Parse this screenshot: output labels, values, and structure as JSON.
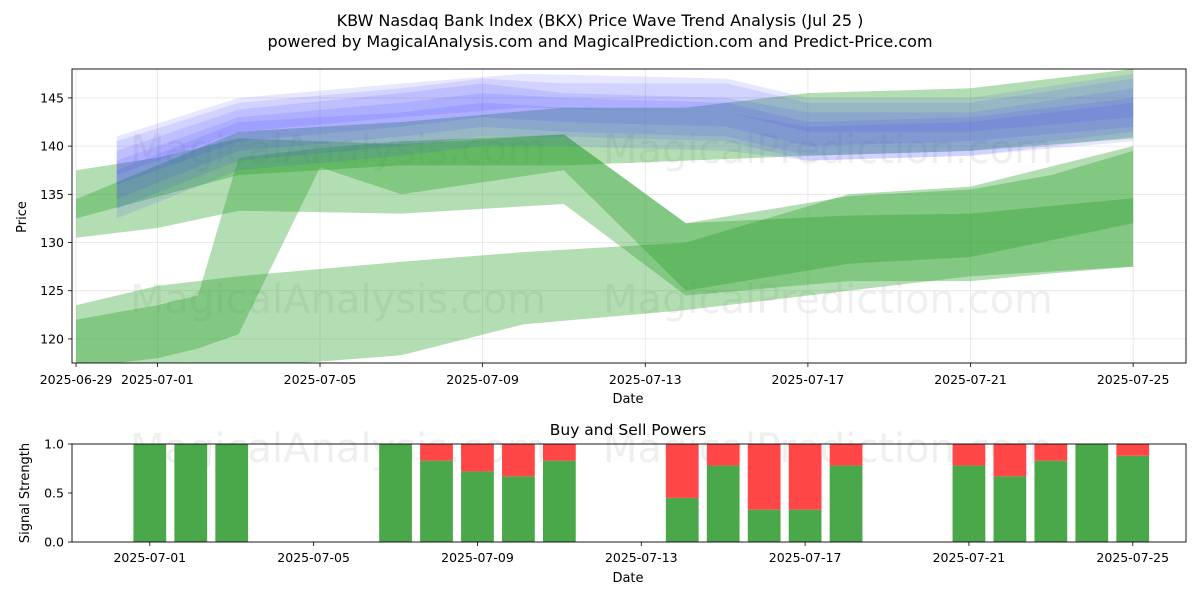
{
  "header": {
    "title": "KBW Nasdaq Bank Index (BKX) Price Wave Trend Analysis (Jul 25 )",
    "subtitle": "powered by MagicalAnalysis.com and MagicalPrediction.com and Predict-Price.com"
  },
  "watermarks": [
    "MagicalAnalysis.com",
    "MagicalPrediction.com"
  ],
  "colors": {
    "green_band": "#2ca02c",
    "blue_band": "#3b3bff",
    "buy": "#4aa84a",
    "sell": "#ff4747",
    "grid": "#e4e4e4"
  },
  "chart_data": [
    {
      "type": "area",
      "title": "",
      "xlabel": "Date",
      "ylabel": "Price",
      "x_range": [
        "2025-06-29",
        "2025-07-26"
      ],
      "ylim": [
        117.5,
        148.0
      ],
      "grid": true,
      "x_ticks": [
        "2025-06-29",
        "2025-07-01",
        "2025-07-05",
        "2025-07-09",
        "2025-07-13",
        "2025-07-17",
        "2025-07-21",
        "2025-07-25"
      ],
      "y_ticks": [
        120,
        125,
        130,
        135,
        140,
        145
      ],
      "green_bands": [
        {
          "x": [
            "2025-06-29",
            "2025-07-01",
            "2025-07-03",
            "2025-07-07",
            "2025-07-11",
            "2025-07-14",
            "2025-07-18",
            "2025-07-21",
            "2025-07-23",
            "2025-07-25"
          ],
          "upper": [
            137.5,
            138.8,
            140.8,
            140.2,
            141.2,
            132.0,
            134.8,
            135.5,
            137.0,
            139.5
          ],
          "lower": [
            130.5,
            131.5,
            133.3,
            133.0,
            134.0,
            124.5,
            126.0,
            126.0,
            126.8,
            127.5
          ]
        },
        {
          "x": [
            "2025-06-29",
            "2025-07-01",
            "2025-07-02",
            "2025-07-03",
            "2025-07-05",
            "2025-07-07",
            "2025-07-11",
            "2025-07-14",
            "2025-07-18",
            "2025-07-21",
            "2025-07-25"
          ],
          "upper": [
            122.0,
            123.5,
            124.5,
            138.8,
            139.8,
            140.5,
            141.2,
            132.0,
            132.8,
            133.0,
            134.6
          ],
          "lower": [
            117.0,
            118.0,
            119.0,
            120.5,
            137.8,
            135.0,
            137.5,
            125.0,
            127.8,
            128.5,
            132.0
          ]
        },
        {
          "x": [
            "2025-06-29",
            "2025-07-01",
            "2025-07-03",
            "2025-07-07",
            "2025-07-10",
            "2025-07-14",
            "2025-07-18",
            "2025-07-21",
            "2025-07-25"
          ],
          "upper": [
            123.5,
            125.5,
            126.5,
            128.0,
            129.0,
            130.0,
            135.0,
            135.8,
            140.0
          ],
          "lower": [
            113.0,
            116.0,
            117.0,
            118.3,
            121.5,
            123.0,
            125.0,
            126.5,
            127.5
          ]
        },
        {
          "x": [
            "2025-06-29",
            "2025-07-03",
            "2025-07-07",
            "2025-07-11",
            "2025-07-14",
            "2025-07-17",
            "2025-07-21",
            "2025-07-25"
          ],
          "upper": [
            134.5,
            141.5,
            142.5,
            144.0,
            144.0,
            145.5,
            146.0,
            148.0
          ],
          "lower": [
            132.5,
            137.0,
            138.0,
            138.0,
            138.5,
            139.0,
            139.5,
            140.8
          ]
        }
      ],
      "blue_bands": [
        {
          "x": [
            "2025-06-30",
            "2025-07-03",
            "2025-07-07",
            "2025-07-09",
            "2025-07-11",
            "2025-07-15",
            "2025-07-17",
            "2025-07-21",
            "2025-07-25"
          ],
          "upper": [
            140.5,
            144.5,
            146.0,
            147.0,
            146.5,
            146.5,
            144.5,
            144.5,
            147.0
          ],
          "lower": [
            136.0,
            140.5,
            142.0,
            143.0,
            142.5,
            142.0,
            140.0,
            140.5,
            142.0
          ]
        },
        {
          "x": [
            "2025-06-30",
            "2025-07-03",
            "2025-07-07",
            "2025-07-09",
            "2025-07-11",
            "2025-07-15",
            "2025-07-17",
            "2025-07-21",
            "2025-07-25"
          ],
          "upper": [
            139.5,
            143.8,
            145.5,
            146.5,
            145.5,
            145.0,
            143.5,
            143.5,
            146.0
          ],
          "lower": [
            134.5,
            139.5,
            141.0,
            142.0,
            141.5,
            141.0,
            139.0,
            139.5,
            141.5
          ]
        },
        {
          "x": [
            "2025-06-30",
            "2025-07-03",
            "2025-07-07",
            "2025-07-09",
            "2025-07-11",
            "2025-07-15",
            "2025-07-17",
            "2025-07-21",
            "2025-07-25"
          ],
          "upper": [
            138.5,
            143.0,
            144.5,
            145.5,
            145.0,
            144.5,
            142.5,
            143.0,
            145.0
          ],
          "lower": [
            133.5,
            138.5,
            140.0,
            141.0,
            141.0,
            140.5,
            138.5,
            139.0,
            141.0
          ]
        },
        {
          "x": [
            "2025-06-30",
            "2025-07-03",
            "2025-07-07",
            "2025-07-10",
            "2025-07-15",
            "2025-07-17",
            "2025-07-21",
            "2025-07-25"
          ],
          "upper": [
            141.0,
            145.0,
            146.5,
            147.5,
            147.0,
            145.0,
            145.0,
            147.5
          ],
          "lower": [
            137.0,
            141.5,
            143.0,
            144.0,
            143.5,
            141.5,
            141.5,
            143.0
          ]
        },
        {
          "x": [
            "2025-06-30",
            "2025-07-03",
            "2025-07-07",
            "2025-07-09",
            "2025-07-11",
            "2025-07-15",
            "2025-07-17",
            "2025-07-21",
            "2025-07-25"
          ],
          "upper": [
            137.5,
            142.5,
            143.5,
            144.5,
            144.0,
            143.5,
            142.0,
            142.5,
            144.5
          ],
          "lower": [
            132.5,
            137.5,
            139.0,
            140.0,
            140.0,
            139.5,
            138.5,
            139.0,
            140.5
          ]
        }
      ]
    },
    {
      "type": "bar",
      "title": "Buy and Sell Powers",
      "xlabel": "Date",
      "ylabel": "Signal Strength",
      "ylim": [
        0,
        1.0
      ],
      "y_ticks": [
        0.0,
        0.5,
        1.0
      ],
      "x_ticks": [
        "2025-07-01",
        "2025-07-05",
        "2025-07-09",
        "2025-07-13",
        "2025-07-17",
        "2025-07-21",
        "2025-07-25"
      ],
      "categories": [
        "2025-07-01",
        "2025-07-02",
        "2025-07-03",
        "2025-07-07",
        "2025-07-08",
        "2025-07-09",
        "2025-07-10",
        "2025-07-11",
        "2025-07-14",
        "2025-07-15",
        "2025-07-16",
        "2025-07-17",
        "2025-07-18",
        "2025-07-21",
        "2025-07-22",
        "2025-07-23",
        "2025-07-24",
        "2025-07-25"
      ],
      "series": [
        {
          "name": "buy",
          "values": [
            1.0,
            1.0,
            1.0,
            1.0,
            0.83,
            0.72,
            0.67,
            0.83,
            0.45,
            0.78,
            0.33,
            0.33,
            0.78,
            0.78,
            0.67,
            0.83,
            1.0,
            0.88
          ]
        },
        {
          "name": "sell",
          "values": [
            0.0,
            0.0,
            0.0,
            0.0,
            0.17,
            0.28,
            0.33,
            0.17,
            0.55,
            0.22,
            0.67,
            0.67,
            0.22,
            0.22,
            0.33,
            0.17,
            0.0,
            0.12
          ]
        }
      ]
    }
  ]
}
